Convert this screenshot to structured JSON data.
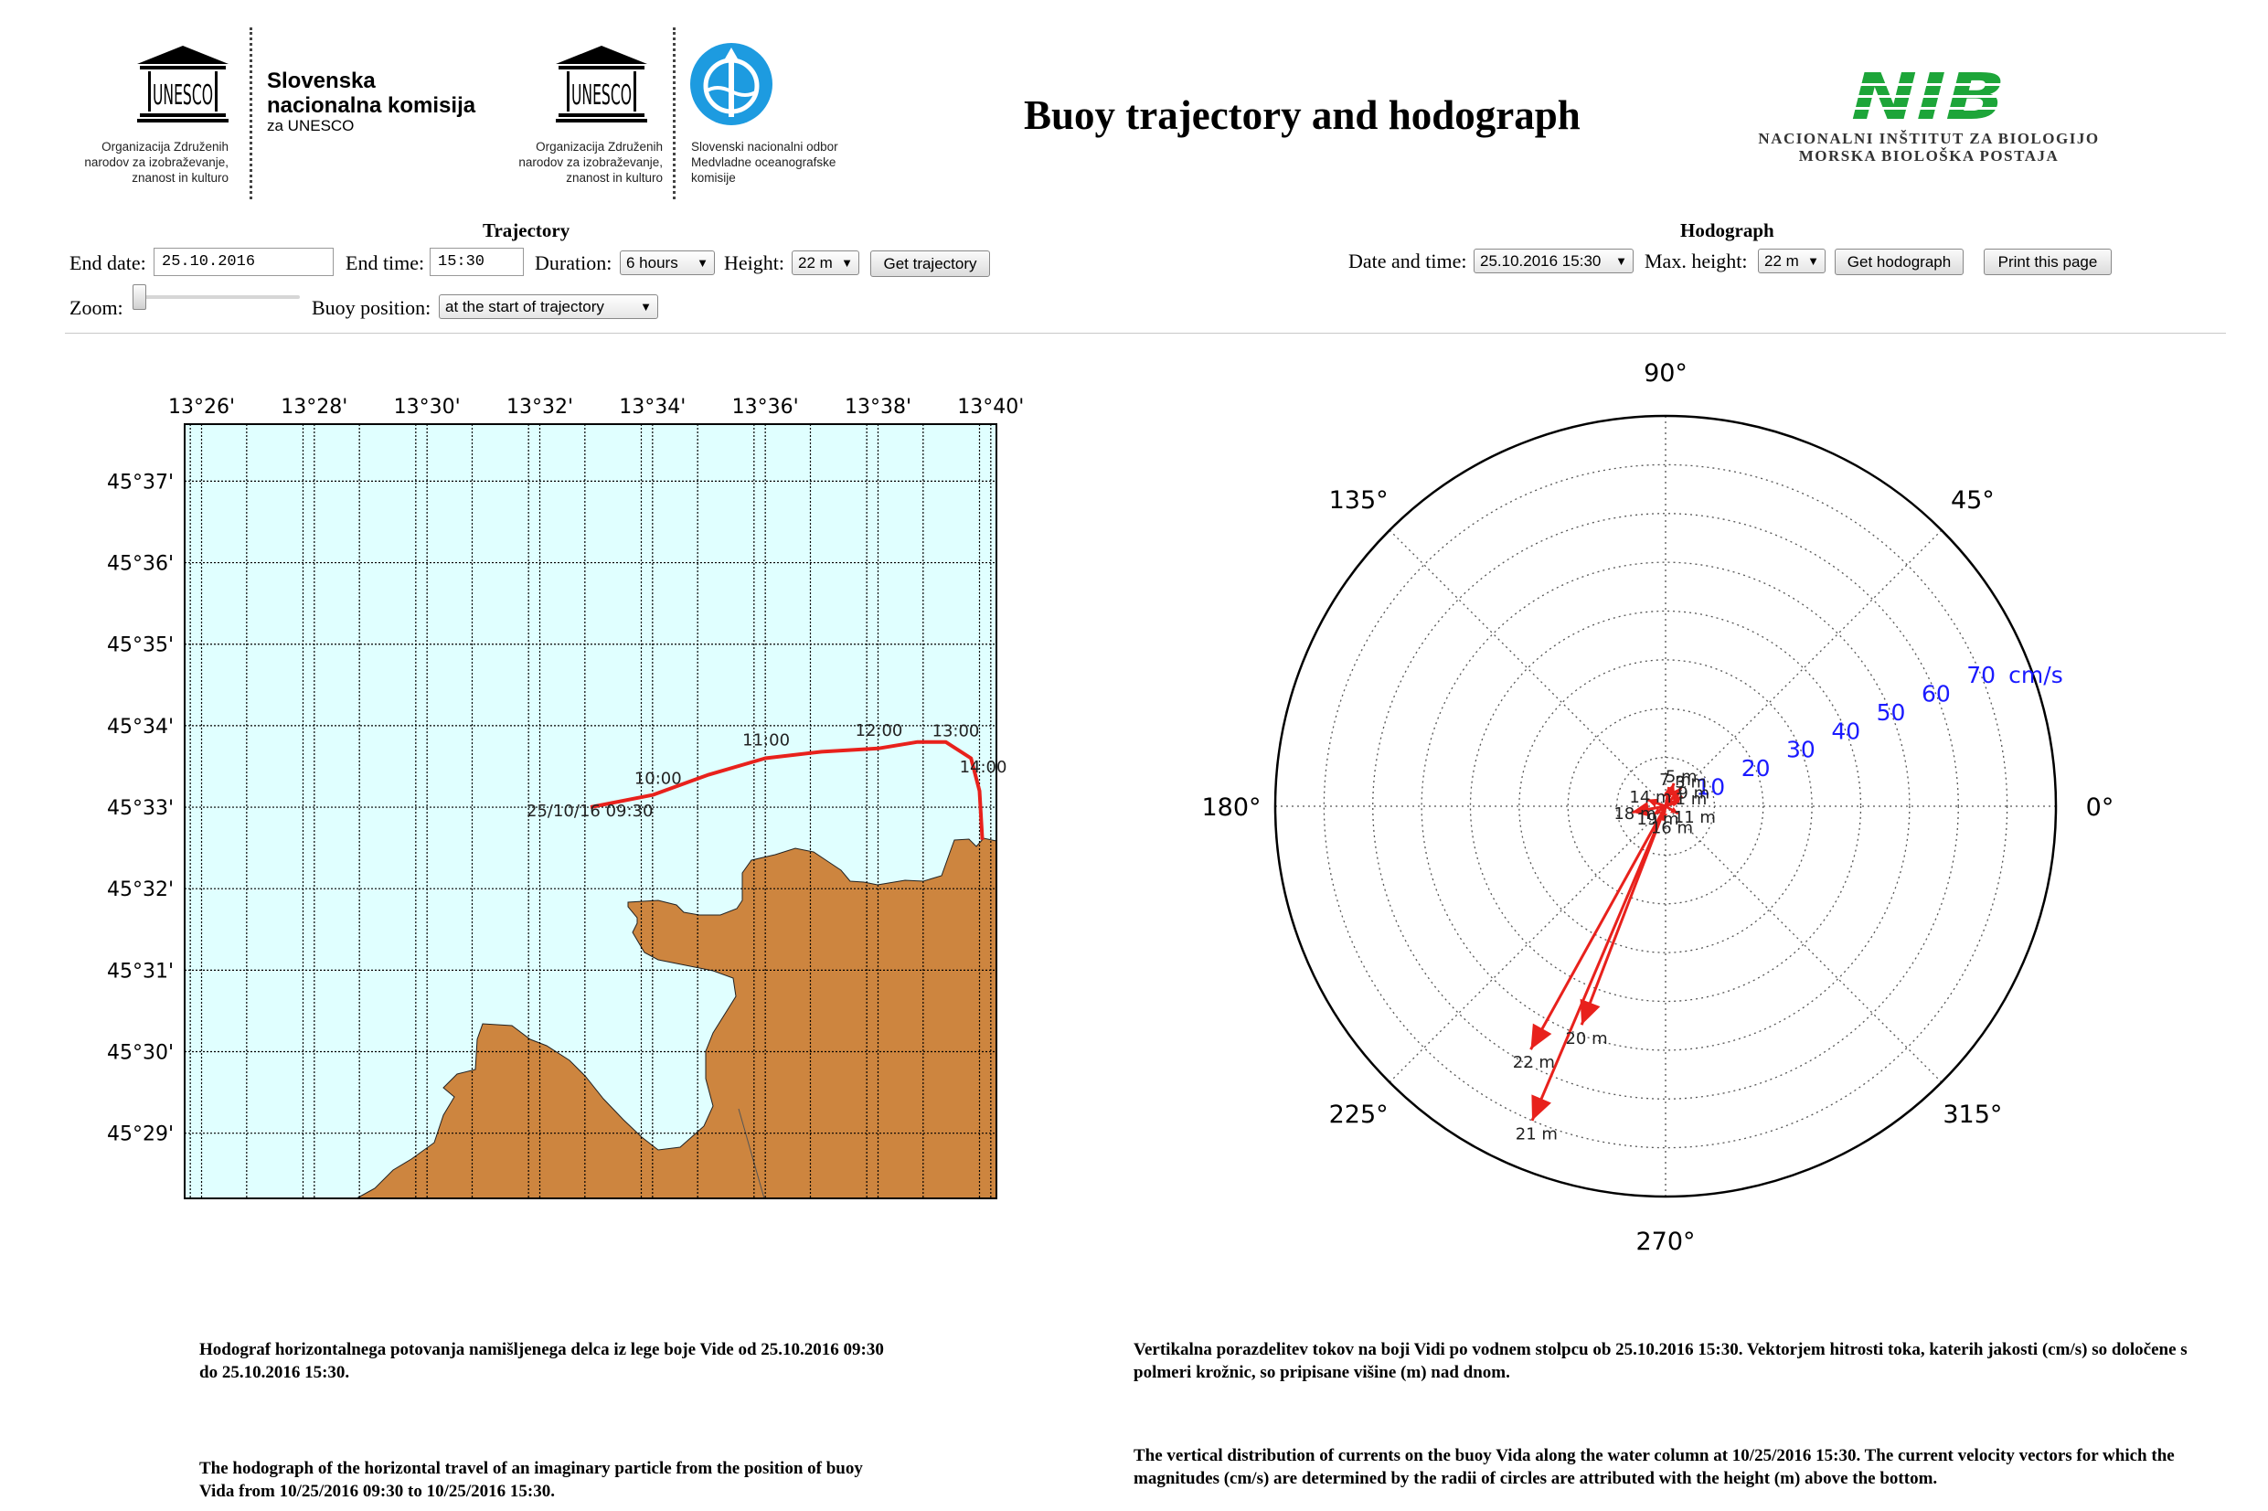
{
  "header": {
    "title": "Buoy trajectory and hodograph",
    "logo1": {
      "acronym": "UNESCO",
      "name1": "Slovenska",
      "name2": "nacionalna komisija",
      "name3": "za UNESCO",
      "caption": [
        "Organizacija Združenih",
        "narodov za izobraževanje,",
        "znanost in kulturo"
      ]
    },
    "logo2": {
      "acronym": "UNESCO",
      "caption": [
        "Organizacija Združenih",
        "narodov za izobraževanje,",
        "znanost in kulturo"
      ],
      "name": [
        "Slovenski nacionalni odbor",
        "Medvladne oceanografske",
        "komisije"
      ]
    },
    "logo3": {
      "mark": "NIB",
      "line1": "NACIONALNI INŠTITUT ZA BIOLOGIJO",
      "line2": "MORSKA BIOLOŠKA POSTAJA"
    }
  },
  "trajectory_form": {
    "section_title": "Trajectory",
    "end_date_label": "End date:",
    "end_date_value": "25.10.2016",
    "end_time_label": "End time:",
    "end_time_value": "15:30",
    "duration_label": "Duration:",
    "duration_value": "6 hours",
    "height_label": "Height:",
    "height_value": "22 m",
    "get_button": "Get trajectory",
    "zoom_label": "Zoom:",
    "zoom_level": 0,
    "buoy_position_label": "Buoy position:",
    "buoy_position_value": "at the start of trajectory"
  },
  "hodograph_form": {
    "section_title": "Hodograph",
    "datetime_label": "Date and time:",
    "datetime_value": "25.10.2016 15:30",
    "max_height_label": "Max. height:",
    "max_height_value": "22 m",
    "get_button": "Get hodograph",
    "print_button": "Print this page"
  },
  "chart_data": [
    {
      "type": "line",
      "xlabel": "",
      "ylabel": "",
      "x_ticks": [
        "13°26'",
        "13°28'",
        "13°30'",
        "13°32'",
        "13°34'",
        "13°36'",
        "13°38'",
        "13°40'"
      ],
      "y_ticks": [
        "45°37'",
        "45°36'",
        "45°35'",
        "45°34'",
        "45°33'",
        "45°32'",
        "45°31'",
        "45°30'",
        "45°29'"
      ],
      "xlim_min": [
        25.7,
        40.1
      ],
      "ylim_min": [
        28.2,
        37.7
      ],
      "grid": true,
      "series": [
        {
          "points_min": [
            [
              32.9,
              33.0
            ],
            [
              34.0,
              33.15
            ],
            [
              35.0,
              33.4
            ],
            [
              36.0,
              33.6
            ],
            [
              37.0,
              33.68
            ],
            [
              38.0,
              33.72
            ],
            [
              38.7,
              33.8
            ],
            [
              39.2,
              33.8
            ],
            [
              39.65,
              33.6
            ],
            [
              39.8,
              33.2
            ],
            [
              39.85,
              32.6
            ]
          ],
          "color": "#e8211c"
        }
      ],
      "annotations": [
        {
          "text": "25/10/16 09:30",
          "at_min": [
            32.9,
            33.0
          ]
        },
        {
          "text": "10:00",
          "at_min": [
            34.0,
            33.15
          ]
        },
        {
          "text": "11:00",
          "at_min": [
            36.0,
            33.6
          ]
        },
        {
          "text": "12:00",
          "at_min": [
            38.0,
            33.72
          ]
        },
        {
          "text": "13:00",
          "at_min": [
            39.2,
            33.8
          ]
        },
        {
          "text": "14:00",
          "at_min": [
            39.85,
            33.2
          ]
        }
      ],
      "land_color": "#cd853f",
      "water_color": "#e0ffff"
    },
    {
      "type": "scatter",
      "angle_labels": [
        "0°",
        "45°",
        "90°",
        "135°",
        "180°",
        "225°",
        "270°",
        "315°"
      ],
      "radius_labels": [
        "10",
        "20",
        "30",
        "40",
        "50",
        "60",
        "70"
      ],
      "radius_unit": "cm/s",
      "rmax": 80,
      "grid": true,
      "vectors": [
        {
          "label": "21 m",
          "speed": 70,
          "direction_deg": 247
        },
        {
          "label": "22 m",
          "speed": 57,
          "direction_deg": 241
        },
        {
          "label": "20 m",
          "speed": 48,
          "direction_deg": 249
        },
        {
          "label": "19 m",
          "speed": 3,
          "direction_deg": 215
        },
        {
          "label": "18 m",
          "speed": 7,
          "direction_deg": 190
        },
        {
          "label": "16 m",
          "speed": 3,
          "direction_deg": 260
        },
        {
          "label": "14 m",
          "speed": 4,
          "direction_deg": 160
        },
        {
          "label": "11 m",
          "speed": 3,
          "direction_deg": 330
        },
        {
          "label": "9 m",
          "speed": 4,
          "direction_deg": 30
        },
        {
          "label": "7 m",
          "speed": 4,
          "direction_deg": 80
        },
        {
          "label": "5 m",
          "speed": 5,
          "direction_deg": 70
        },
        {
          "label": "3 m",
          "speed": 5,
          "direction_deg": 50
        },
        {
          "label": "1 m",
          "speed": 3,
          "direction_deg": 20
        }
      ],
      "vector_color": "#e8211c"
    }
  ],
  "captions": {
    "left_slo": "Hodograf horizontalnega potovanja namišljenega delca iz lege boje Vide od 25.10.2016 09:30 do 25.10.2016 15:30.",
    "left_eng": "The hodograph of the horizontal travel of an imaginary particle from the position of buoy Vida from 10/25/2016 09:30 to 10/25/2016 15:30.",
    "right_slo": "Vertikalna porazdelitev tokov na boji Vidi po vodnem stolpcu ob 25.10.2016 15:30. Vektorjem hitrosti toka, katerih jakosti (cm/s) so določene s polmeri krožnic, so pripisane višine (m) nad dnom.",
    "right_eng": "The vertical distribution of currents on the buoy Vida along the water column at 10/25/2016 15:30. The current velocity vectors for which the magnitudes (cm/s) are determined by the radii of circles are attributed with the height (m) above the bottom."
  }
}
